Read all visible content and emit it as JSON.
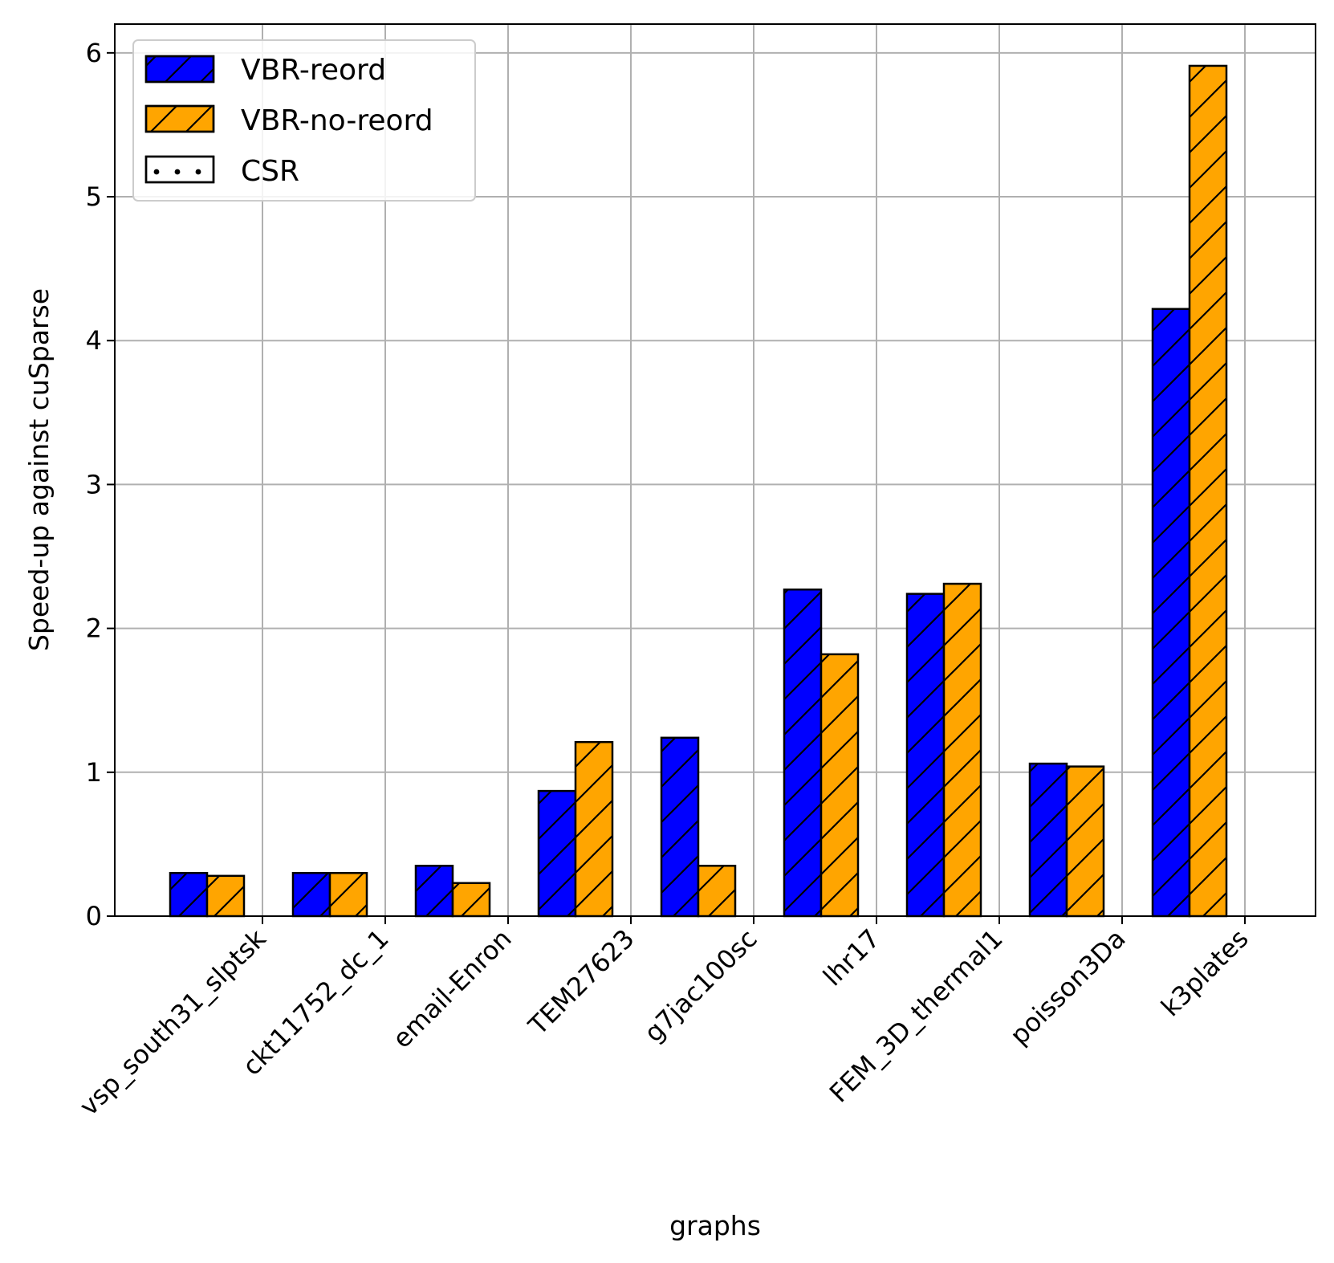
{
  "chart_data": {
    "type": "bar",
    "title": "",
    "xlabel": "graphs",
    "ylabel": "Speed-up against cuSparse",
    "ylim": [
      0,
      6.2
    ],
    "yticks": [
      0,
      1,
      2,
      3,
      4,
      5,
      6
    ],
    "grid": true,
    "legend_position": "top-left",
    "categories": [
      "vsp_south31_slptsk",
      "ckt11752_dc_1",
      "email-Enron",
      "TEM27623",
      "g7jac100sc",
      "lhr17",
      "FEM_3D_thermal1",
      "poisson3Da",
      "k3plates"
    ],
    "series": [
      {
        "name": "VBR-reord",
        "color": "#0000ff",
        "hatch": "diagonal",
        "values": [
          0.3,
          0.3,
          0.35,
          0.87,
          1.24,
          2.27,
          2.24,
          1.06,
          4.22
        ]
      },
      {
        "name": "VBR-no-reord",
        "color": "#ffa500",
        "hatch": "diagonal",
        "values": [
          0.28,
          0.3,
          0.23,
          1.21,
          0.35,
          1.82,
          2.31,
          1.04,
          5.91
        ]
      },
      {
        "name": "CSR",
        "color": "#ffffff",
        "hatch": "dots",
        "values": [
          0,
          0,
          0,
          0,
          0,
          0,
          0,
          0,
          0
        ]
      }
    ]
  }
}
